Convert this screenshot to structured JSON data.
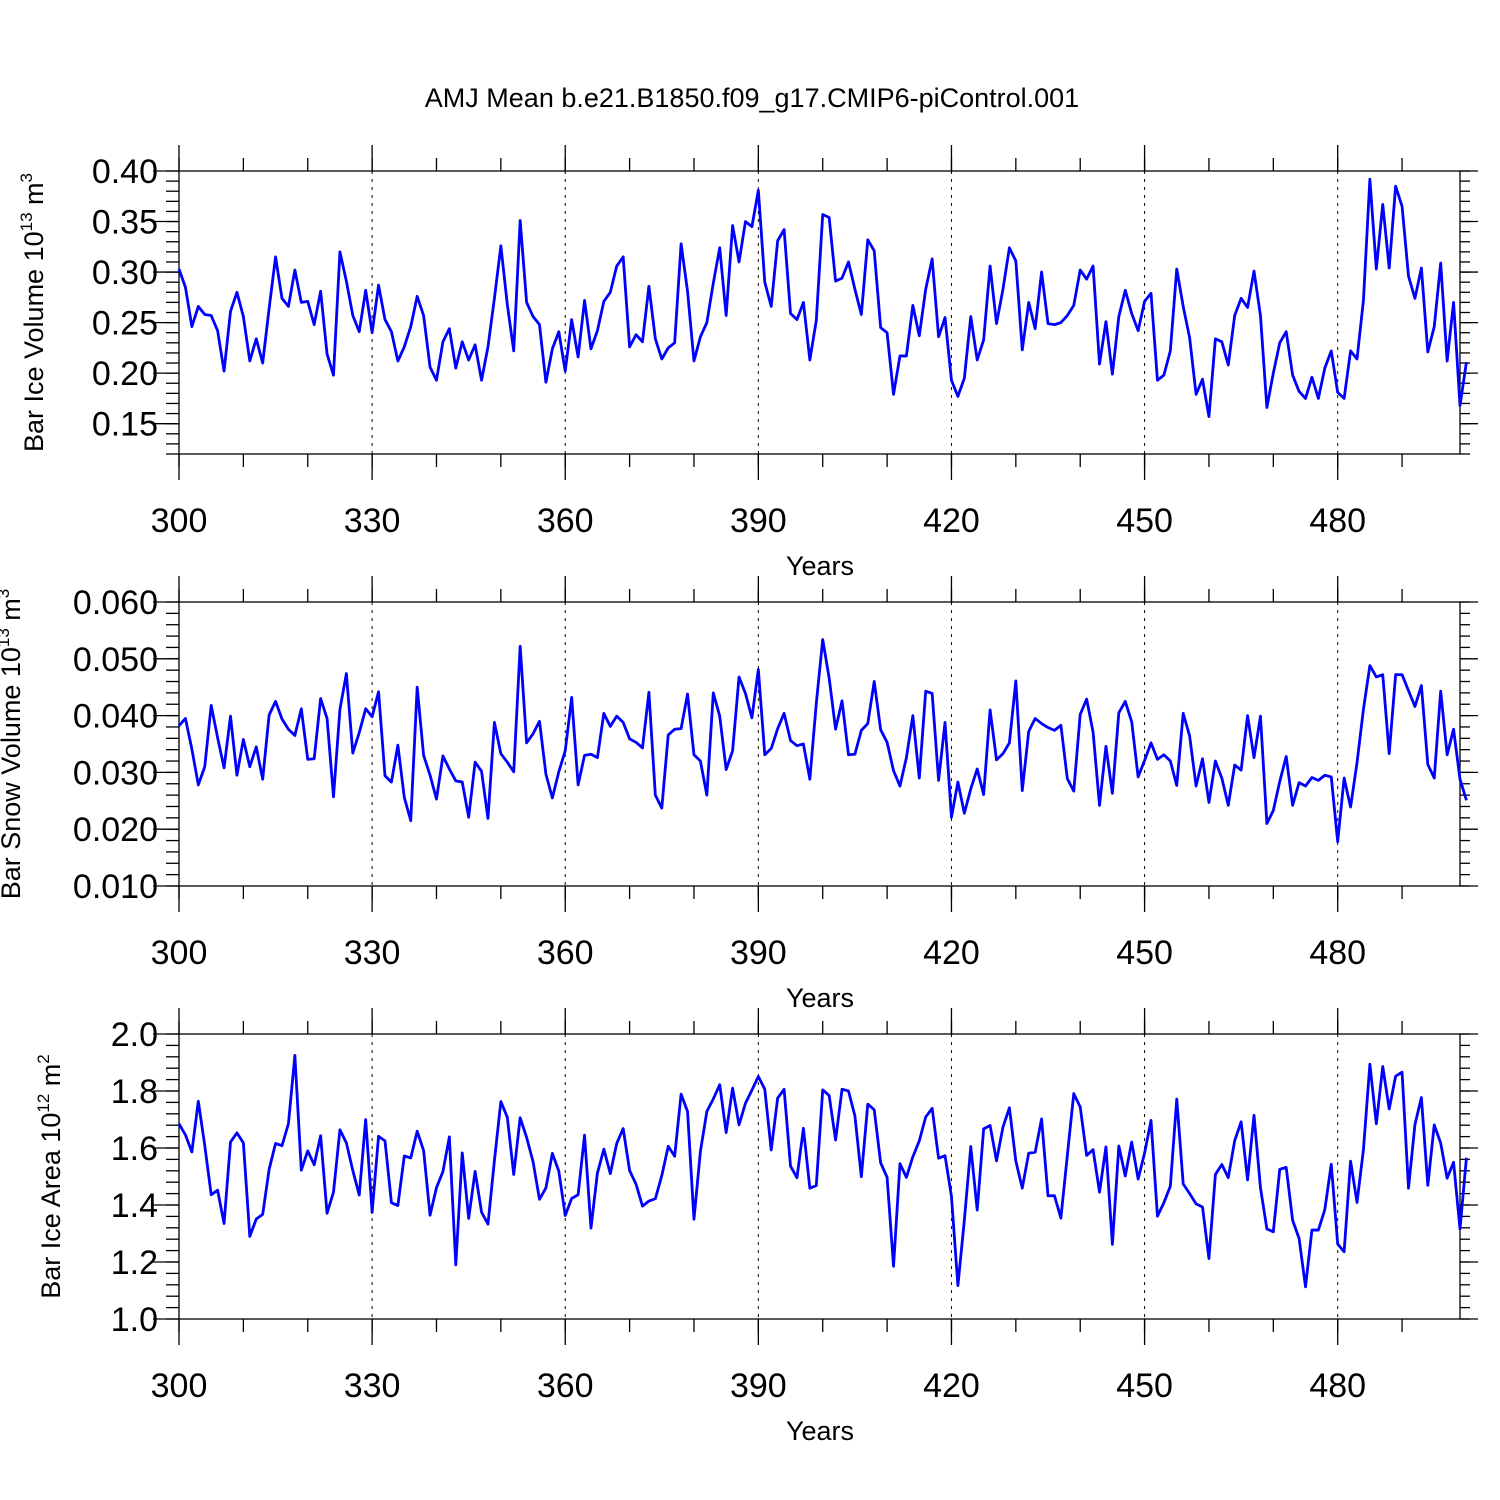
{
  "chart_data": {
    "title": "AMJ Mean b.e21.B1850.f09_g17.CMIP6-piControl.001",
    "panels": [
      {
        "type": "line",
        "ylabel": "Bar Ice Volume 10",
        "ylabel_exp": "13",
        "ylabel_unit": " m",
        "ylabel_unit_exp": "3",
        "xlabel": "Years",
        "xlim": [
          300,
          499
        ],
        "ylim": [
          0.12,
          0.4
        ],
        "yticks": [
          "0.15",
          "0.20",
          "0.25",
          "0.30",
          "0.35",
          "0.40"
        ],
        "xticks": [
          "300",
          "330",
          "360",
          "390",
          "420",
          "450",
          "480"
        ],
        "series_color": "#0000ff",
        "x_start": 300,
        "values": [
          0.303,
          0.285,
          0.246,
          0.266,
          0.258,
          0.257,
          0.242,
          0.202,
          0.261,
          0.28,
          0.256,
          0.212,
          0.234,
          0.21,
          0.264,
          0.315,
          0.274,
          0.266,
          0.302,
          0.27,
          0.271,
          0.248,
          0.281,
          0.219,
          0.198,
          0.32,
          0.291,
          0.257,
          0.241,
          0.282,
          0.24,
          0.287,
          0.253,
          0.241,
          0.212,
          0.226,
          0.246,
          0.276,
          0.257,
          0.206,
          0.193,
          0.231,
          0.244,
          0.205,
          0.231,
          0.213,
          0.228,
          0.193,
          0.226,
          0.274,
          0.326,
          0.268,
          0.222,
          0.351,
          0.27,
          0.256,
          0.248,
          0.191,
          0.224,
          0.241,
          0.202,
          0.253,
          0.216,
          0.272,
          0.224,
          0.242,
          0.271,
          0.28,
          0.306,
          0.315,
          0.226,
          0.238,
          0.231,
          0.286,
          0.234,
          0.214,
          0.225,
          0.23,
          0.328,
          0.281,
          0.212,
          0.236,
          0.25,
          0.289,
          0.324,
          0.257,
          0.346,
          0.31,
          0.35,
          0.345,
          0.381,
          0.29,
          0.266,
          0.331,
          0.342,
          0.259,
          0.253,
          0.27,
          0.213,
          0.252,
          0.357,
          0.354,
          0.291,
          0.294,
          0.31,
          0.283,
          0.258,
          0.332,
          0.321,
          0.245,
          0.24,
          0.179,
          0.217,
          0.217,
          0.267,
          0.237,
          0.283,
          0.313,
          0.236,
          0.255,
          0.193,
          0.177,
          0.195,
          0.256,
          0.213,
          0.233,
          0.306,
          0.249,
          0.283,
          0.324,
          0.311,
          0.223,
          0.27,
          0.244,
          0.3,
          0.249,
          0.248,
          0.25,
          0.257,
          0.267,
          0.302,
          0.293,
          0.306,
          0.209,
          0.251,
          0.199,
          0.256,
          0.282,
          0.259,
          0.242,
          0.271,
          0.279,
          0.193,
          0.198,
          0.222,
          0.303,
          0.266,
          0.235,
          0.179,
          0.194,
          0.157,
          0.234,
          0.231,
          0.208,
          0.257,
          0.274,
          0.265,
          0.301,
          0.257,
          0.166,
          0.2,
          0.23,
          0.241,
          0.198,
          0.182,
          0.175,
          0.196,
          0.175,
          0.205,
          0.222,
          0.181,
          0.175,
          0.222,
          0.214,
          0.272,
          0.392,
          0.303,
          0.367,
          0.304,
          0.385,
          0.365,
          0.296,
          0.274,
          0.304,
          0.221,
          0.246,
          0.309,
          0.212,
          0.27,
          0.168,
          0.211
        ]
      },
      {
        "type": "line",
        "ylabel": "Bar Snow Volume 10",
        "ylabel_exp": "13",
        "ylabel_unit": " m",
        "ylabel_unit_exp": "3",
        "xlabel": "Years",
        "xlim": [
          300,
          499
        ],
        "ylim": [
          0.01,
          0.06
        ],
        "yticks": [
          "0.010",
          "0.020",
          "0.030",
          "0.040",
          "0.050",
          "0.060"
        ],
        "xticks": [
          "300",
          "330",
          "360",
          "390",
          "420",
          "450",
          "480"
        ],
        "series_color": "#0000ff",
        "x_start": 300,
        "values": [
          0.0382,
          0.0395,
          0.0341,
          0.0278,
          0.031,
          0.0418,
          0.0361,
          0.0308,
          0.0399,
          0.0295,
          0.0358,
          0.031,
          0.0345,
          0.0288,
          0.0401,
          0.0425,
          0.0394,
          0.0376,
          0.0365,
          0.0412,
          0.0323,
          0.0324,
          0.043,
          0.0395,
          0.0257,
          0.0411,
          0.0474,
          0.0334,
          0.037,
          0.0412,
          0.0398,
          0.0442,
          0.0294,
          0.0283,
          0.0348,
          0.0256,
          0.0215,
          0.045,
          0.033,
          0.0295,
          0.0253,
          0.0329,
          0.0306,
          0.0285,
          0.0283,
          0.0221,
          0.0318,
          0.0302,
          0.0219,
          0.0388,
          0.0333,
          0.0318,
          0.0301,
          0.0522,
          0.0352,
          0.0368,
          0.039,
          0.0297,
          0.0255,
          0.0301,
          0.0338,
          0.0432,
          0.0278,
          0.033,
          0.0332,
          0.0326,
          0.0404,
          0.0381,
          0.0399,
          0.0388,
          0.0359,
          0.0353,
          0.0343,
          0.0441,
          0.026,
          0.0237,
          0.0366,
          0.0376,
          0.0377,
          0.0438,
          0.0331,
          0.032,
          0.026,
          0.044,
          0.0399,
          0.0305,
          0.0338,
          0.0468,
          0.0439,
          0.0396,
          0.0481,
          0.0331,
          0.0342,
          0.0377,
          0.0404,
          0.0356,
          0.0347,
          0.035,
          0.0288,
          0.0421,
          0.0534,
          0.0466,
          0.0376,
          0.0426,
          0.0331,
          0.0332,
          0.0374,
          0.0386,
          0.046,
          0.0375,
          0.0353,
          0.0303,
          0.0276,
          0.0326,
          0.04,
          0.029,
          0.0443,
          0.0439,
          0.0286,
          0.0388,
          0.0221,
          0.0283,
          0.0228,
          0.0271,
          0.0306,
          0.0261,
          0.041,
          0.0322,
          0.0333,
          0.0352,
          0.0461,
          0.0268,
          0.0372,
          0.0395,
          0.0386,
          0.0379,
          0.0374,
          0.0383,
          0.0289,
          0.0267,
          0.0402,
          0.0429,
          0.0371,
          0.0242,
          0.0346,
          0.0263,
          0.0405,
          0.0425,
          0.0389,
          0.0292,
          0.0321,
          0.0352,
          0.0323,
          0.0331,
          0.032,
          0.0277,
          0.0404,
          0.0364,
          0.0276,
          0.0324,
          0.0247,
          0.032,
          0.029,
          0.0242,
          0.0313,
          0.0304,
          0.04,
          0.0326,
          0.0399,
          0.021,
          0.0233,
          0.0284,
          0.0328,
          0.0242,
          0.0282,
          0.0276,
          0.0291,
          0.0286,
          0.0295,
          0.0292,
          0.0178,
          0.029,
          0.0239,
          0.0317,
          0.0411,
          0.0488,
          0.0468,
          0.0472,
          0.0333,
          0.0472,
          0.0472,
          0.0444,
          0.0416,
          0.0453,
          0.0314,
          0.029,
          0.0443,
          0.0331,
          0.0376,
          0.0288,
          0.0251
        ]
      },
      {
        "type": "line",
        "ylabel": "Bar Ice Area 10",
        "ylabel_exp": "12",
        "ylabel_unit": " m",
        "ylabel_unit_exp": "2",
        "xlabel": "Years",
        "xlim": [
          300,
          499
        ],
        "ylim": [
          1.0,
          2.0
        ],
        "yticks": [
          "1.0",
          "1.2",
          "1.4",
          "1.6",
          "1.8",
          "2.0"
        ],
        "xticks": [
          "300",
          "330",
          "360",
          "390",
          "420",
          "450",
          "480"
        ],
        "series_color": "#0000ff",
        "x_start": 300,
        "values": [
          1.685,
          1.646,
          1.586,
          1.764,
          1.609,
          1.436,
          1.452,
          1.335,
          1.621,
          1.653,
          1.618,
          1.29,
          1.351,
          1.367,
          1.525,
          1.616,
          1.608,
          1.685,
          1.925,
          1.522,
          1.59,
          1.541,
          1.643,
          1.371,
          1.445,
          1.664,
          1.618,
          1.521,
          1.435,
          1.7,
          1.374,
          1.641,
          1.625,
          1.408,
          1.398,
          1.572,
          1.565,
          1.659,
          1.591,
          1.364,
          1.461,
          1.517,
          1.639,
          1.19,
          1.583,
          1.353,
          1.518,
          1.375,
          1.333,
          1.556,
          1.763,
          1.708,
          1.507,
          1.706,
          1.637,
          1.552,
          1.42,
          1.46,
          1.581,
          1.519,
          1.363,
          1.423,
          1.436,
          1.645,
          1.319,
          1.512,
          1.596,
          1.51,
          1.616,
          1.668,
          1.521,
          1.473,
          1.396,
          1.414,
          1.422,
          1.503,
          1.606,
          1.571,
          1.789,
          1.728,
          1.35,
          1.588,
          1.728,
          1.772,
          1.822,
          1.654,
          1.81,
          1.681,
          1.757,
          1.803,
          1.851,
          1.806,
          1.593,
          1.775,
          1.806,
          1.536,
          1.496,
          1.669,
          1.459,
          1.468,
          1.804,
          1.784,
          1.628,
          1.806,
          1.8,
          1.713,
          1.499,
          1.754,
          1.734,
          1.548,
          1.497,
          1.185,
          1.545,
          1.497,
          1.569,
          1.625,
          1.709,
          1.739,
          1.564,
          1.573,
          1.43,
          1.117,
          1.346,
          1.605,
          1.382,
          1.667,
          1.679,
          1.555,
          1.673,
          1.741,
          1.554,
          1.459,
          1.582,
          1.585,
          1.702,
          1.432,
          1.433,
          1.354,
          1.574,
          1.791,
          1.744,
          1.574,
          1.594,
          1.445,
          1.604,
          1.262,
          1.607,
          1.502,
          1.621,
          1.491,
          1.582,
          1.697,
          1.361,
          1.408,
          1.466,
          1.772,
          1.474,
          1.44,
          1.404,
          1.393,
          1.212,
          1.507,
          1.542,
          1.496,
          1.626,
          1.692,
          1.488,
          1.715,
          1.461,
          1.316,
          1.306,
          1.525,
          1.532,
          1.346,
          1.283,
          1.113,
          1.312,
          1.312,
          1.384,
          1.543,
          1.263,
          1.236,
          1.554,
          1.409,
          1.594,
          1.894,
          1.685,
          1.886,
          1.737,
          1.852,
          1.866,
          1.459,
          1.682,
          1.777,
          1.469,
          1.681,
          1.617,
          1.494,
          1.55,
          1.316,
          1.566
        ]
      }
    ]
  }
}
